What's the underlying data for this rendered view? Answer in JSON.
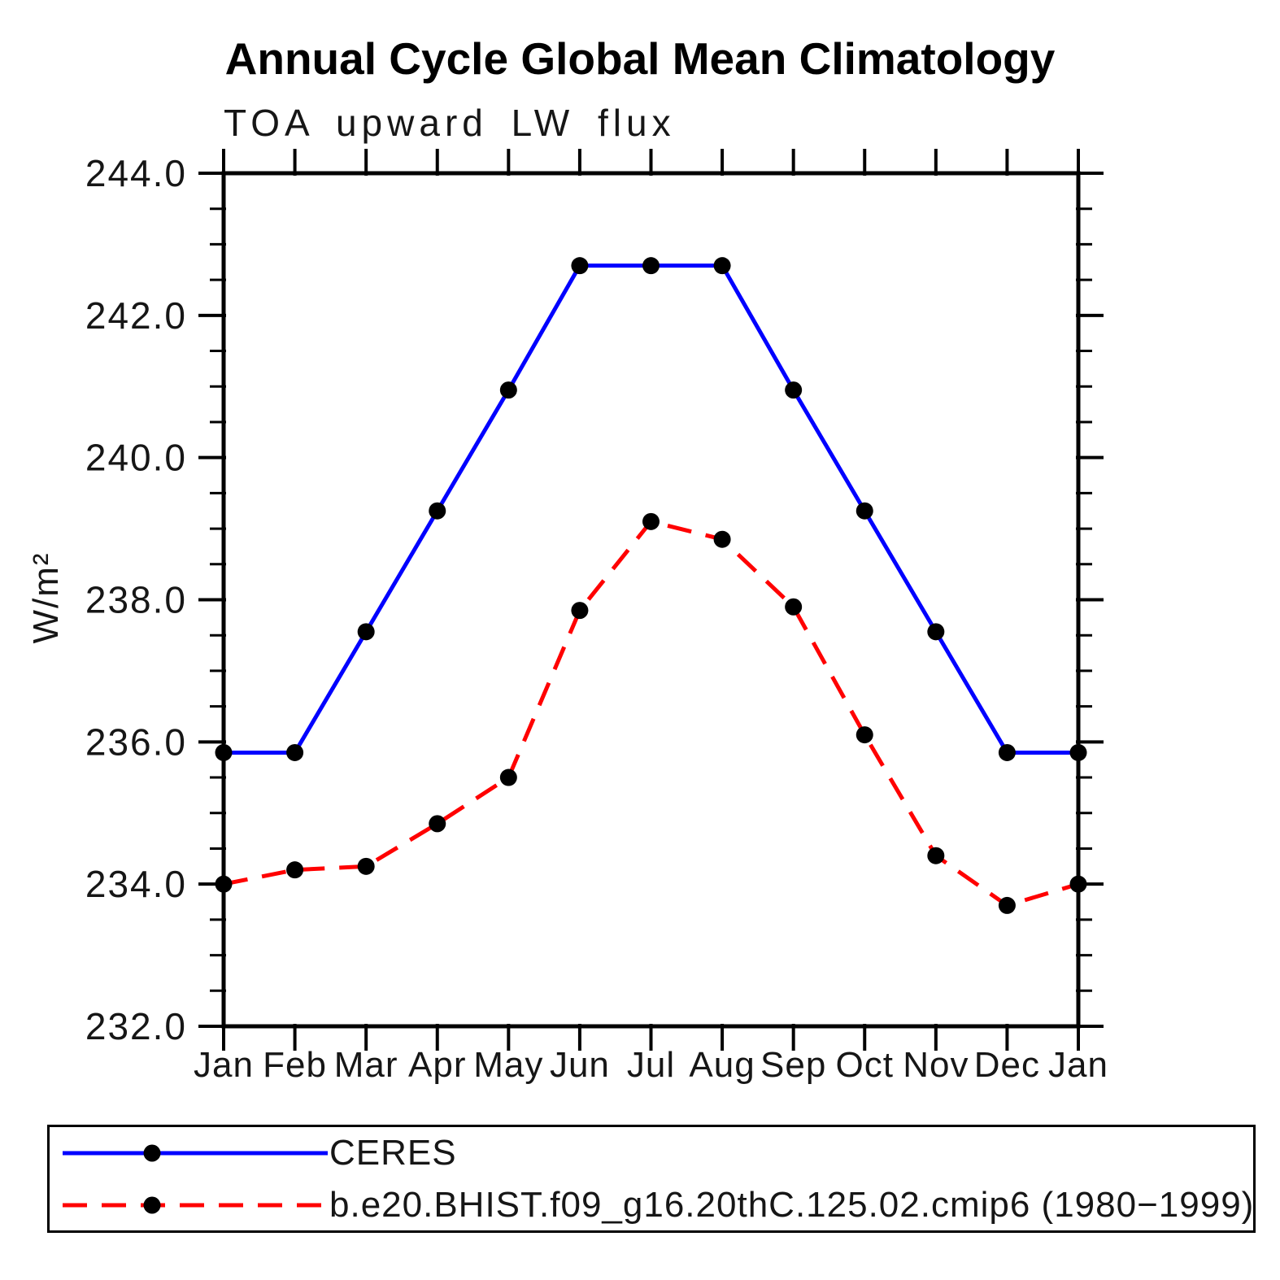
{
  "header": {
    "title": "Annual Cycle Global Mean Climatology",
    "subtitle": "TOA upward LW flux"
  },
  "colors": {
    "axis": "#000000",
    "ceres_line": "#0000ff",
    "model_line": "#ff0000",
    "marker": "#000000"
  },
  "chart_data": {
    "type": "line",
    "title": "Annual Cycle Global Mean Climatology",
    "subtitle": "TOA upward LW flux",
    "ylabel": "W/m²",
    "xlabel": "",
    "grid": false,
    "legend_position": "bottom",
    "x_categories": [
      "Jan",
      "Feb",
      "Mar",
      "Apr",
      "May",
      "Jun",
      "Jul",
      "Aug",
      "Sep",
      "Oct",
      "Nov",
      "Dec",
      "Jan"
    ],
    "ylim": [
      232.0,
      244.0
    ],
    "ytick_values": [
      232.0,
      234.0,
      236.0,
      238.0,
      240.0,
      242.0,
      244.0
    ],
    "ytick_labels": [
      "232.0",
      "234.0",
      "236.0",
      "238.0",
      "240.0",
      "242.0",
      "244.0"
    ],
    "yminor_step": 0.5,
    "series": [
      {
        "name": "CERES",
        "color": "#0000ff",
        "style": "solid",
        "marker": "circle",
        "marker_color": "#000000",
        "values": [
          235.85,
          235.85,
          237.55,
          239.25,
          240.95,
          242.7,
          242.7,
          242.7,
          240.95,
          239.25,
          237.55,
          235.85,
          235.85
        ]
      },
      {
        "name": "b.e20.BHIST.f09_g16.20thC.125.02.cmip6 (1980−1999)",
        "color": "#ff0000",
        "style": "dashed",
        "marker": "circle",
        "marker_color": "#000000",
        "values": [
          234.0,
          234.2,
          234.25,
          234.85,
          235.5,
          237.85,
          239.1,
          238.85,
          237.9,
          236.1,
          234.4,
          233.7,
          234.0
        ]
      }
    ]
  }
}
